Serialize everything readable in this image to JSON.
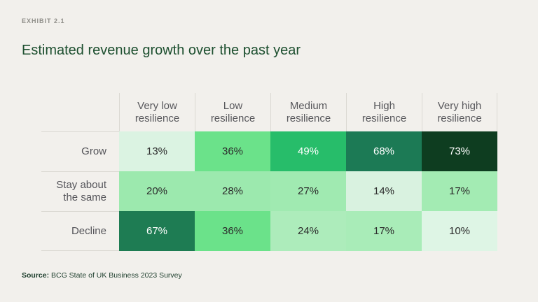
{
  "page": {
    "background": "#f2f0ec",
    "line_color": "#dbd9d3",
    "title_color": "#1d4f2f"
  },
  "exhibit_label": "EXHIBIT 2.1",
  "title": "Estimated revenue growth over the past year",
  "source": {
    "prefix": "Source:",
    "text": " BCG State of UK Business 2023 Survey"
  },
  "chart_data": {
    "type": "heatmap",
    "title": "Estimated revenue growth over the past year",
    "columns": [
      "Very low resilience",
      "Low resilience",
      "Medium resilience",
      "High resilience",
      "Very high resilience"
    ],
    "rows": [
      "Grow",
      "Stay about the same",
      "Decline"
    ],
    "values": [
      [
        13,
        36,
        49,
        68,
        73
      ],
      [
        20,
        28,
        27,
        14,
        17
      ],
      [
        67,
        36,
        24,
        17,
        10
      ]
    ],
    "unit": "%",
    "color_scale": {
      "low": "#def5e5",
      "mid": "#27bd6a",
      "high": "#0e3d20"
    }
  },
  "table": {
    "headers": [
      {
        "label": "Very low resilience"
      },
      {
        "label": "Low resilience"
      },
      {
        "label": "Medium resilience"
      },
      {
        "label": "High resilience"
      },
      {
        "label": "Very high resilience"
      }
    ],
    "rows": [
      {
        "label": "Grow",
        "cells": [
          {
            "label": "13%",
            "bg": "#dbf3e2",
            "fg": "#2b2b2b"
          },
          {
            "label": "36%",
            "bg": "#6be28a",
            "fg": "#2b2b2b"
          },
          {
            "label": "49%",
            "bg": "#27bd6a",
            "fg": "#ffffff"
          },
          {
            "label": "68%",
            "bg": "#1c7a55",
            "fg": "#ffffff"
          },
          {
            "label": "73%",
            "bg": "#0e3d20",
            "fg": "#ffffff"
          }
        ]
      },
      {
        "label": "Stay about the same",
        "cells": [
          {
            "label": "20%",
            "bg": "#9ce9ae",
            "fg": "#2b2b2b"
          },
          {
            "label": "28%",
            "bg": "#9ce9ae",
            "fg": "#2b2b2b"
          },
          {
            "label": "27%",
            "bg": "#a0eab1",
            "fg": "#2b2b2b"
          },
          {
            "label": "14%",
            "bg": "#d9f2e0",
            "fg": "#2b2b2b"
          },
          {
            "label": "17%",
            "bg": "#a3ebb3",
            "fg": "#2b2b2b"
          }
        ]
      },
      {
        "label": "Decline",
        "cells": [
          {
            "label": "67%",
            "bg": "#1e7c53",
            "fg": "#ffffff"
          },
          {
            "label": "36%",
            "bg": "#6be28a",
            "fg": "#2b2b2b"
          },
          {
            "label": "24%",
            "bg": "#adecbb",
            "fg": "#2b2b2b"
          },
          {
            "label": "17%",
            "bg": "#a9ecb8",
            "fg": "#2b2b2b"
          },
          {
            "label": "10%",
            "bg": "#def5e5",
            "fg": "#2b2b2b"
          }
        ]
      }
    ]
  }
}
